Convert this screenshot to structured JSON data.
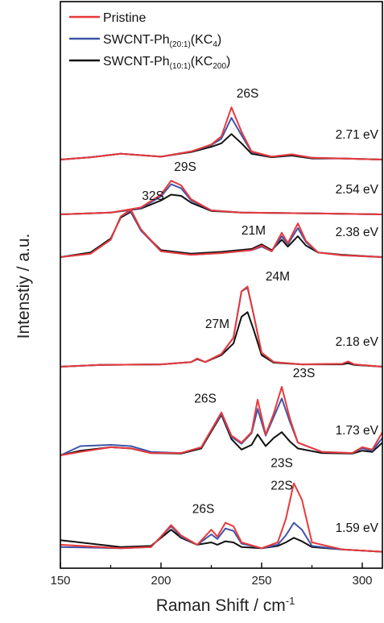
{
  "chart_data": {
    "type": "line",
    "xlabel": "Raman Shift / cm",
    "xlabel_sup": "-1",
    "ylabel": "Intenstiy / a.u.",
    "xlim": [
      150,
      310
    ],
    "x_ticks": [
      150,
      200,
      250,
      300
    ],
    "y_ticks_labeled": false,
    "legend": {
      "placement": "top-left",
      "entries": [
        {
          "text": "Pristine",
          "color": "#e8393b"
        },
        {
          "text": "SWCNT-Ph",
          "sub": "(20:1)",
          "tail": "(KC",
          "tail_sub": "4",
          "end": ")",
          "color": "#4054a8"
        },
        {
          "text": "SWCNT-Ph",
          "sub": "(10:1)",
          "tail": "(KC",
          "tail_sub": "200",
          "end": ")",
          "color": "#111111"
        }
      ]
    },
    "series_colors": {
      "pristine": "#e8393b",
      "kc4": "#4054a8",
      "kc200": "#111111"
    },
    "panels": [
      {
        "energy": "2.71 eV",
        "annotations": [
          {
            "text": "26S",
            "x": 243
          }
        ],
        "x": [
          150,
          165,
          180,
          200,
          215,
          225,
          230,
          235,
          240,
          245,
          255,
          265,
          275,
          290,
          310
        ],
        "series": [
          {
            "name": "Pristine",
            "values": [
              0,
              4,
              10,
              5,
              14,
              26,
              40,
              90,
              48,
              14,
              5,
              9,
              3,
              2,
              0
            ]
          },
          {
            "name": "SWCNT-Ph(20:1)(KC4)",
            "values": [
              0,
              4,
              10,
              5,
              14,
              25,
              36,
              72,
              42,
              13,
              5,
              9,
              3,
              2,
              0
            ]
          },
          {
            "name": "SWCNT-Ph(10:1)(KC200)",
            "values": [
              0,
              4,
              10,
              5,
              13,
              22,
              28,
              44,
              28,
              10,
              4,
              7,
              2,
              2,
              0
            ]
          }
        ]
      },
      {
        "energy": "2.54 eV",
        "annotations": [
          {
            "text": "29S",
            "x": 212
          }
        ],
        "x": [
          150,
          175,
          190,
          200,
          205,
          210,
          215,
          225,
          240,
          270,
          310
        ],
        "series": [
          {
            "name": "Pristine",
            "values": [
              0,
              3,
              12,
              34,
              58,
              50,
              26,
              7,
              3,
              2,
              0
            ]
          },
          {
            "name": "SWCNT-Ph(20:1)(KC4)",
            "values": [
              0,
              3,
              11,
              31,
              52,
              45,
              24,
              7,
              3,
              2,
              0
            ]
          },
          {
            "name": "SWCNT-Ph(10:1)(KC200)",
            "values": [
              0,
              3,
              10,
              24,
              34,
              32,
              20,
              6,
              3,
              2,
              0
            ]
          }
        ]
      },
      {
        "energy": "2.38 eV",
        "annotations": [
          {
            "text": "32S",
            "x": 196
          },
          {
            "text": "21M",
            "x": 246
          }
        ],
        "x": [
          150,
          165,
          175,
          180,
          185,
          190,
          200,
          215,
          230,
          245,
          250,
          255,
          260,
          263,
          268,
          272,
          278,
          290,
          310
        ],
        "series": [
          {
            "name": "Pristine",
            "values": [
              0,
              6,
              30,
              70,
              82,
              48,
              10,
              4,
              7,
              12,
              20,
              10,
              42,
              24,
              58,
              28,
              8,
              3,
              0
            ]
          },
          {
            "name": "SWCNT-Ph(20:1)(KC4)",
            "values": [
              0,
              6,
              30,
              70,
              80,
              46,
              10,
              4,
              7,
              12,
              18,
              10,
              36,
              22,
              50,
              26,
              8,
              3,
              0
            ]
          },
          {
            "name": "SWCNT-Ph(10:1)(KC200)",
            "values": [
              0,
              8,
              32,
              68,
              78,
              46,
              12,
              6,
              9,
              14,
              22,
              12,
              30,
              18,
              36,
              20,
              8,
              4,
              0
            ]
          }
        ]
      },
      {
        "energy": "2.18 eV",
        "annotations": [
          {
            "text": "27M",
            "x": 228
          },
          {
            "text": "24M",
            "x": 258
          }
        ],
        "x": [
          150,
          170,
          200,
          215,
          218,
          222,
          230,
          236,
          240,
          243,
          246,
          250,
          256,
          270,
          290,
          293,
          296,
          310
        ],
        "series": [
          {
            "name": "Pristine",
            "values": [
              0,
              3,
              4,
              8,
              14,
              8,
              22,
              50,
              130,
              138,
              90,
              24,
              8,
              4,
              5,
              9,
              4,
              0
            ]
          },
          {
            "name": "SWCNT-Ph(20:1)(KC4)",
            "values": [
              0,
              3,
              4,
              8,
              14,
              8,
              22,
              50,
              130,
              136,
              90,
              24,
              8,
              4,
              5,
              9,
              4,
              0
            ]
          },
          {
            "name": "SWCNT-Ph(10:1)(KC200)",
            "values": [
              0,
              3,
              4,
              8,
              13,
              8,
              20,
              40,
              86,
              94,
              64,
              20,
              7,
              4,
              4,
              6,
              3,
              0
            ]
          }
        ]
      },
      {
        "energy": "1.73 eV",
        "annotations": [
          {
            "text": "26S",
            "x": 222
          },
          {
            "text": "23S",
            "x": 271
          }
        ],
        "x": [
          150,
          160,
          175,
          185,
          195,
          210,
          220,
          230,
          235,
          240,
          245,
          248,
          252,
          256,
          260,
          264,
          268,
          280,
          295,
          300,
          305,
          310
        ],
        "series": [
          {
            "name": "Pristine",
            "values": [
              0,
              6,
              14,
              12,
              4,
              4,
              14,
              74,
              34,
              22,
              40,
              96,
              36,
              72,
              118,
              64,
              22,
              6,
              4,
              14,
              10,
              40
            ]
          },
          {
            "name": "SWCNT-Ph(20:1)(KC4)",
            "values": [
              0,
              16,
              18,
              16,
              6,
              4,
              14,
              72,
              32,
              20,
              38,
              80,
              34,
              66,
              98,
              58,
              22,
              6,
              4,
              12,
              8,
              30
            ]
          },
          {
            "name": "SWCNT-Ph(10:1)(KC200)",
            "values": [
              0,
              8,
              14,
              12,
              4,
              3,
              12,
              70,
              28,
              10,
              18,
              36,
              16,
              30,
              40,
              24,
              12,
              4,
              3,
              8,
              6,
              22
            ]
          }
        ]
      },
      {
        "energy": "1.59 eV",
        "annotations": [
          {
            "text": "26S",
            "x": 221
          },
          {
            "text": "23S",
            "x": 260
          },
          {
            "text": "22S",
            "x": 260
          }
        ],
        "x": [
          150,
          180,
          195,
          200,
          205,
          210,
          218,
          225,
          228,
          232,
          236,
          240,
          250,
          258,
          262,
          266,
          270,
          275,
          290,
          310
        ],
        "series": [
          {
            "name": "Pristine",
            "values": [
              14,
              8,
              10,
              28,
              48,
              30,
              14,
              40,
              28,
              52,
              46,
              18,
              8,
              18,
              58,
              120,
              92,
              18,
              6,
              2
            ]
          },
          {
            "name": "SWCNT-Ph(20:1)(KC4)",
            "values": [
              10,
              8,
              10,
              28,
              46,
              28,
              14,
              32,
              24,
              42,
              38,
              16,
              8,
              14,
              30,
              52,
              40,
              12,
              6,
              2
            ]
          },
          {
            "name": "SWCNT-Ph(10:1)(KC200)",
            "values": [
              22,
              10,
              12,
              26,
              40,
              26,
              14,
              18,
              14,
              20,
              18,
              10,
              8,
              12,
              18,
              26,
              20,
              10,
              6,
              2
            ]
          }
        ]
      }
    ]
  }
}
